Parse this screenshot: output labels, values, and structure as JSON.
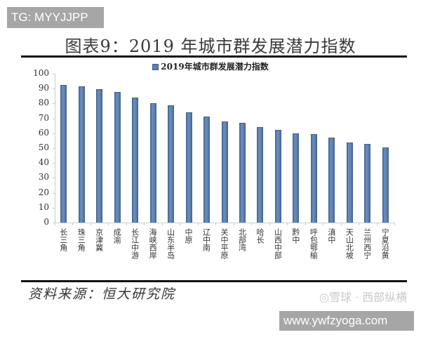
{
  "watermarks": {
    "tg_badge": "TG: MYYJJPP",
    "xueqiu": "◎雪球 · 西部纵横",
    "xueqiu_sub": "西部纵横",
    "site_badge": "www.ywfzyoga.com"
  },
  "figure": {
    "title": "图表9：2019 年城市群发展潜力指数",
    "legend_label": "2019年城市群发展潜力指数",
    "source": "资料来源：恒大研究院"
  },
  "colors": {
    "bar_fill": "#5b7fae",
    "bar_edge": "#3f5f8a",
    "axis": "#c8ccd2",
    "badge_bg": "#a6a6a6"
  },
  "chart_data": {
    "type": "bar",
    "title": "2019年城市群发展潜力指数",
    "xlabel": "",
    "ylabel": "",
    "ylim": [
      0,
      100
    ],
    "yticks": [
      0,
      10,
      20,
      30,
      40,
      50,
      60,
      70,
      80,
      90,
      100
    ],
    "grid": false,
    "legend_position": "top",
    "categories": [
      "长三角",
      "珠三角",
      "京津冀",
      "成渝",
      "长江中游",
      "海峡西岸",
      "山东半岛",
      "中原",
      "辽中南",
      "关中平原",
      "北部湾",
      "哈长",
      "山西中部",
      "黔中",
      "呼包鄂榆",
      "滇中",
      "天山北坡",
      "兰州西宁",
      "宁夏沿黄"
    ],
    "series": [
      {
        "name": "2019年城市群发展潜力指数",
        "values": [
          92.5,
          91.4,
          89.5,
          87.7,
          84.0,
          80.0,
          78.8,
          74.0,
          71.2,
          67.9,
          67.0,
          64.2,
          62.3,
          59.7,
          59.4,
          57.1,
          53.8,
          52.8,
          50.5
        ]
      }
    ]
  }
}
